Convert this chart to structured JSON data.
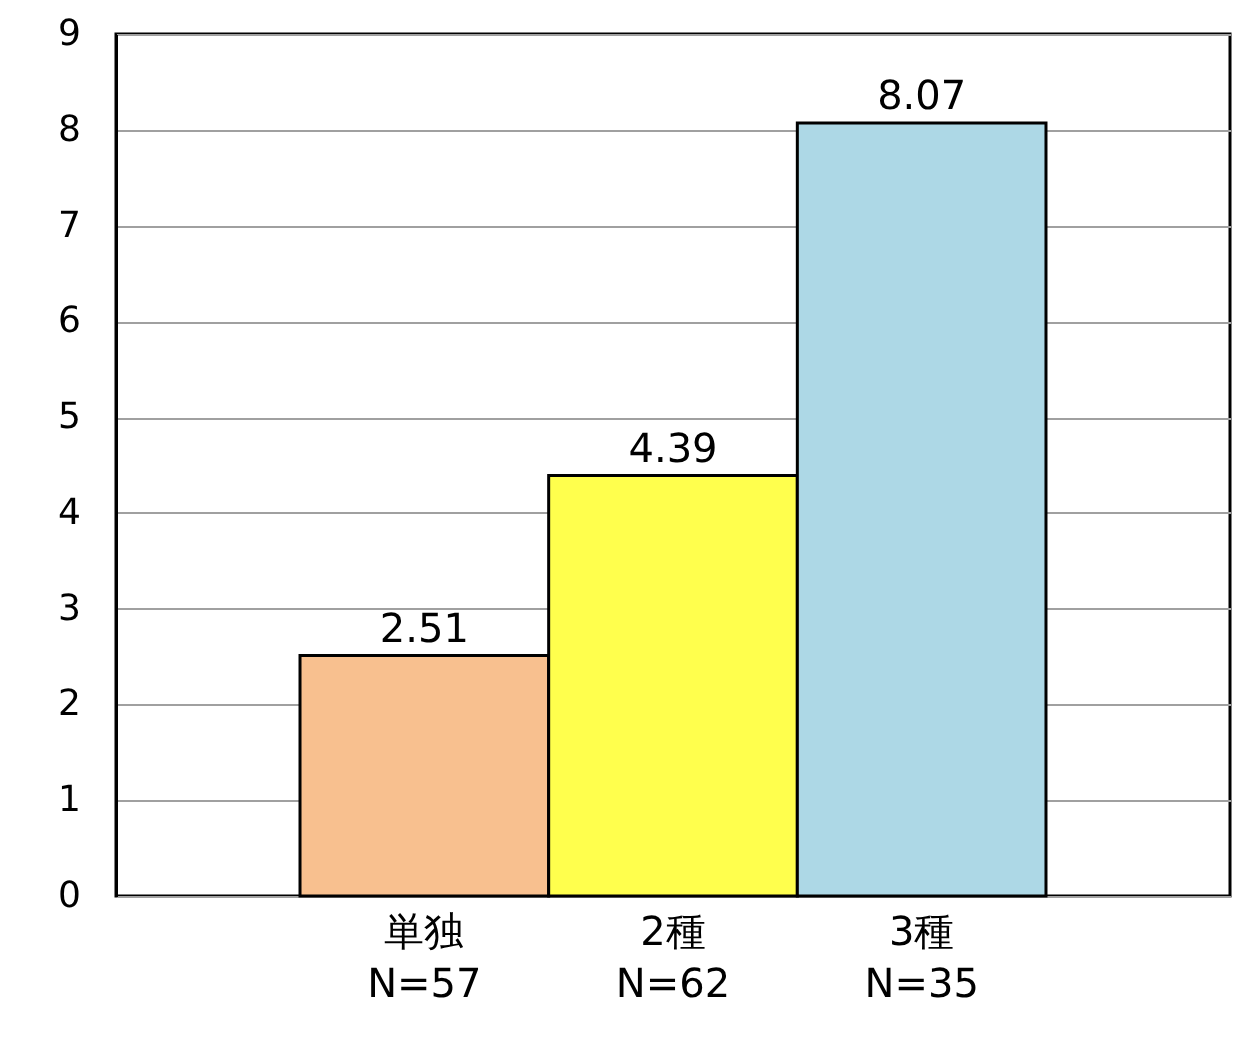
{
  "chart_data": {
    "type": "bar",
    "categories": [
      "単独\nN=57",
      "2種\nN=62",
      "3種\nN=35"
    ],
    "values": [
      2.51,
      4.39,
      8.07
    ],
    "colors": [
      "#f8c08f",
      "#ffff4d",
      "#add8e6"
    ],
    "ylim": [
      0,
      9
    ],
    "yticks": [
      0,
      1,
      2,
      3,
      4,
      5,
      6,
      7,
      8,
      9
    ],
    "grid": "y",
    "data_labels": true
  }
}
